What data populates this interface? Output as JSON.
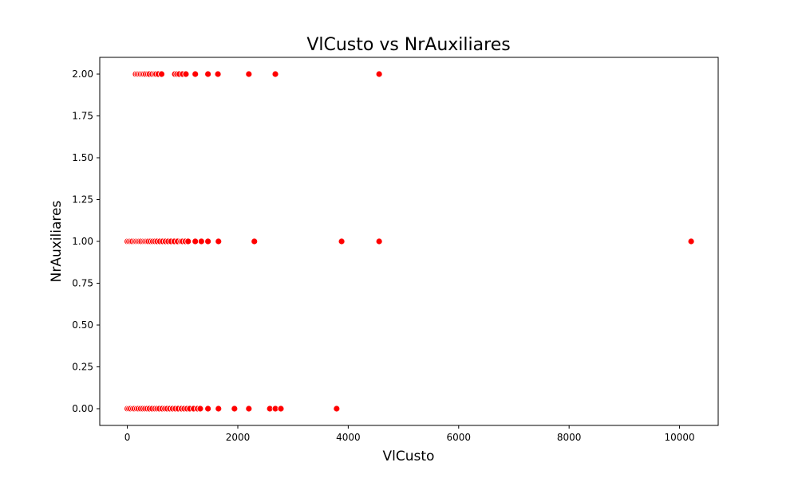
{
  "chart_data": {
    "type": "scatter",
    "title": "VlCusto vs NrAuxiliares",
    "xlabel": "VlCusto",
    "ylabel": "NrAuxiliares",
    "xlim": [
      -500,
      10700
    ],
    "ylim": [
      -0.1,
      2.1
    ],
    "xticks": [
      0,
      2000,
      4000,
      6000,
      8000,
      10000
    ],
    "yticks": [
      0.0,
      0.25,
      0.5,
      0.75,
      1.0,
      1.25,
      1.5,
      1.75,
      2.0
    ],
    "xtick_labels": [
      "0",
      "2000",
      "4000",
      "6000",
      "8000",
      "10000"
    ],
    "ytick_labels": [
      "0.00",
      "0.25",
      "0.50",
      "0.75",
      "1.00",
      "1.25",
      "1.50",
      "1.75",
      "2.00"
    ],
    "grid": false,
    "series": [
      {
        "color": "#ff0000",
        "points": [
          [
            150,
            2
          ],
          [
            180,
            2
          ],
          [
            210,
            2
          ],
          [
            240,
            2
          ],
          [
            270,
            2
          ],
          [
            300,
            2
          ],
          [
            330,
            2
          ],
          [
            370,
            2
          ],
          [
            400,
            2
          ],
          [
            450,
            2
          ],
          [
            490,
            2
          ],
          [
            520,
            2
          ],
          [
            560,
            2
          ],
          [
            620,
            2
          ],
          [
            860,
            2
          ],
          [
            900,
            2
          ],
          [
            940,
            2
          ],
          [
            1000,
            2
          ],
          [
            1060,
            2
          ],
          [
            1230,
            2
          ],
          [
            1460,
            2
          ],
          [
            1640,
            2
          ],
          [
            2200,
            2
          ],
          [
            2680,
            2
          ],
          [
            4560,
            2
          ],
          [
            0,
            1
          ],
          [
            30,
            1
          ],
          [
            60,
            1
          ],
          [
            90,
            1
          ],
          [
            130,
            1
          ],
          [
            160,
            1
          ],
          [
            190,
            1
          ],
          [
            220,
            1
          ],
          [
            250,
            1
          ],
          [
            290,
            1
          ],
          [
            320,
            1
          ],
          [
            350,
            1
          ],
          [
            380,
            1
          ],
          [
            420,
            1
          ],
          [
            460,
            1
          ],
          [
            500,
            1
          ],
          [
            540,
            1
          ],
          [
            590,
            1
          ],
          [
            640,
            1
          ],
          [
            690,
            1
          ],
          [
            740,
            1
          ],
          [
            790,
            1
          ],
          [
            850,
            1
          ],
          [
            910,
            1
          ],
          [
            970,
            1
          ],
          [
            1000,
            1
          ],
          [
            1050,
            1
          ],
          [
            1100,
            1
          ],
          [
            1230,
            1
          ],
          [
            1340,
            1
          ],
          [
            1460,
            1
          ],
          [
            1650,
            1
          ],
          [
            2300,
            1
          ],
          [
            3880,
            1
          ],
          [
            4560,
            1
          ],
          [
            10210,
            1
          ],
          [
            0,
            0
          ],
          [
            30,
            0
          ],
          [
            60,
            0
          ],
          [
            100,
            0
          ],
          [
            130,
            0
          ],
          [
            170,
            0
          ],
          [
            200,
            0
          ],
          [
            240,
            0
          ],
          [
            280,
            0
          ],
          [
            320,
            0
          ],
          [
            360,
            0
          ],
          [
            400,
            0
          ],
          [
            450,
            0
          ],
          [
            500,
            0
          ],
          [
            540,
            0
          ],
          [
            580,
            0
          ],
          [
            630,
            0
          ],
          [
            680,
            0
          ],
          [
            720,
            0
          ],
          [
            770,
            0
          ],
          [
            820,
            0
          ],
          [
            870,
            0
          ],
          [
            920,
            0
          ],
          [
            980,
            0
          ],
          [
            1030,
            0
          ],
          [
            1080,
            0
          ],
          [
            1130,
            0
          ],
          [
            1200,
            0
          ],
          [
            1270,
            0
          ],
          [
            1320,
            0
          ],
          [
            1460,
            0
          ],
          [
            1650,
            0
          ],
          [
            1940,
            0
          ],
          [
            2200,
            0
          ],
          [
            2580,
            0
          ],
          [
            2680,
            0
          ],
          [
            2780,
            0
          ],
          [
            3790,
            0
          ]
        ]
      }
    ]
  }
}
